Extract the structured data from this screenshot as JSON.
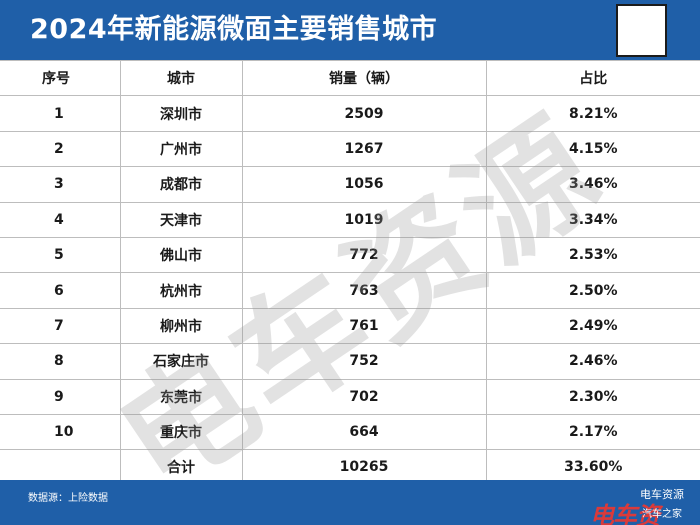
{
  "header": {
    "title": "2024年新能源微面主要销售城市"
  },
  "table": {
    "columns": [
      "序号",
      "城市",
      "销量（辆）",
      "占比"
    ],
    "rows": [
      {
        "rank": "1",
        "city": "深圳市",
        "sales": "2509",
        "share": "8.21%"
      },
      {
        "rank": "2",
        "city": "广州市",
        "sales": "1267",
        "share": "4.15%"
      },
      {
        "rank": "3",
        "city": "成都市",
        "sales": "1056",
        "share": "3.46%"
      },
      {
        "rank": "4",
        "city": "天津市",
        "sales": "1019",
        "share": "3.34%"
      },
      {
        "rank": "5",
        "city": "佛山市",
        "sales": "772",
        "share": "2.53%"
      },
      {
        "rank": "6",
        "city": "杭州市",
        "sales": "763",
        "share": "2.50%"
      },
      {
        "rank": "7",
        "city": "柳州市",
        "sales": "761",
        "share": "2.49%"
      },
      {
        "rank": "8",
        "city": "石家庄市",
        "sales": "752",
        "share": "2.46%"
      },
      {
        "rank": "9",
        "city": "东莞市",
        "sales": "702",
        "share": "2.30%"
      },
      {
        "rank": "10",
        "city": "重庆市",
        "sales": "664",
        "share": "2.17%"
      }
    ],
    "total": {
      "label": "合计",
      "sales": "10265",
      "share": "33.60%"
    }
  },
  "watermark": "电车资源",
  "footer": {
    "source": "数据源：上险数据",
    "brand_top": "电车资源",
    "brand_bottom": "汽车之家",
    "brand_logo": "电车资"
  },
  "colors": {
    "header_bg": "#1f5fa8",
    "logo_red": "#e53935"
  }
}
